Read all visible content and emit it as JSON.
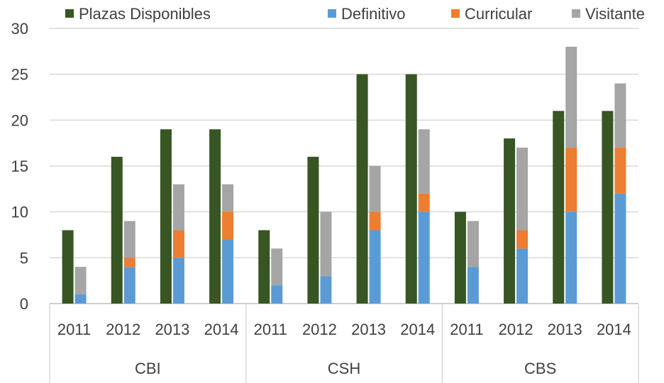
{
  "chart_data": {
    "type": "bar",
    "subtype": "clustered-stacked",
    "groups": [
      "CBI",
      "CSH",
      "CBS"
    ],
    "years": [
      "2011",
      "2012",
      "2013",
      "2014"
    ],
    "ylim": [
      0,
      30
    ],
    "yticks": [
      0,
      5,
      10,
      15,
      20,
      25,
      30
    ],
    "grid": true,
    "legend_position": "top",
    "series": [
      {
        "name": "Plazas Disponibles",
        "color": "#375623",
        "stack": "plazas",
        "values": [
          8,
          16,
          19,
          19,
          8,
          16,
          25,
          25,
          10,
          18,
          21,
          21
        ]
      },
      {
        "name": "Definitivo",
        "color": "#5B9BD5",
        "stack": "ocupadas",
        "values": [
          1,
          4,
          5,
          7,
          2,
          3,
          8,
          10,
          4,
          6,
          10,
          12
        ]
      },
      {
        "name": "Curricular",
        "color": "#ED7D31",
        "stack": "ocupadas",
        "values": [
          0,
          1,
          3,
          3,
          0,
          0,
          2,
          2,
          0,
          2,
          7,
          5
        ]
      },
      {
        "name": "Visitante",
        "color": "#A5A5A5",
        "stack": "ocupadas",
        "values": [
          3,
          4,
          5,
          3,
          4,
          7,
          5,
          7,
          5,
          9,
          11,
          7
        ]
      }
    ]
  }
}
